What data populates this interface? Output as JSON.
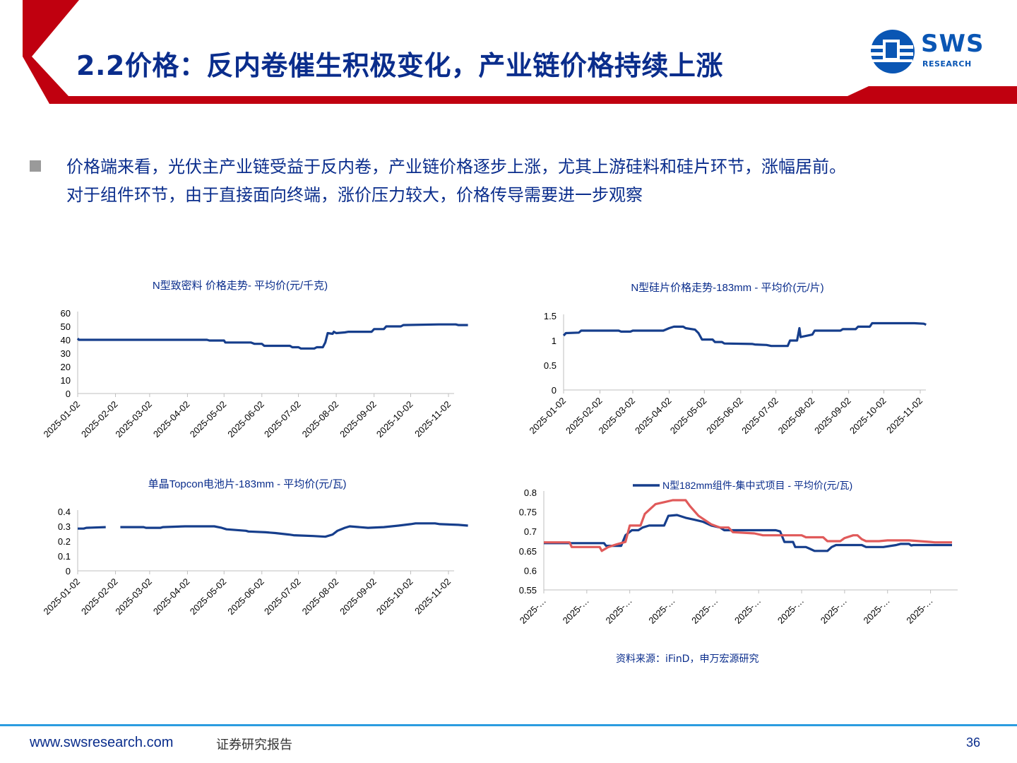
{
  "header": {
    "title": "2.2价格：反内卷催生积极变化，产业链价格持续上涨",
    "logo_text": "SWS",
    "logo_sub": "RESEARCH"
  },
  "body": {
    "bullet_lines": [
      "价格端来看，光伏主产业链受益于反内卷，产业链价格逐步上涨，尤其上游硅料和硅片环节，涨幅居前。",
      "对于组件环节，由于直接面向终端，涨价压力较大，价格传导需要进一步观察"
    ]
  },
  "chart_data": [
    {
      "type": "line",
      "title": "N型致密料 价格走势- 平均价(元/千克)",
      "ylim": [
        0,
        60
      ],
      "yticks": [
        "0",
        "10",
        "20",
        "30",
        "40",
        "50",
        "60"
      ],
      "ytick_values": [
        0,
        10,
        20,
        30,
        40,
        50,
        60
      ],
      "xticks": [
        "2025-01-02",
        "2025-02-02",
        "2025-03-02",
        "2025-04-02",
        "2025-05-02",
        "2025-06-02",
        "2025-07-02",
        "2025-08-02",
        "2025-09-02",
        "2025-10-02",
        "2025-11-02"
      ],
      "xlim": [
        "2025-01-02",
        "2025-11-02"
      ],
      "series": [
        {
          "color": "#163e8c",
          "points": [
            [
              "2025-01-02",
              41
            ],
            [
              "2025-01-03",
              40
            ],
            [
              "2025-04-18",
              40
            ],
            [
              "2025-04-20",
              39.5
            ],
            [
              "2025-05-02",
              39.5
            ],
            [
              "2025-05-03",
              38
            ],
            [
              "2025-05-24",
              38
            ],
            [
              "2025-05-27",
              37
            ],
            [
              "2025-06-02",
              37
            ],
            [
              "2025-06-04",
              35.5
            ],
            [
              "2025-06-25",
              35.5
            ],
            [
              "2025-06-27",
              34.5
            ],
            [
              "2025-07-02",
              34.5
            ],
            [
              "2025-07-04",
              33.5
            ],
            [
              "2025-07-15",
              33.5
            ],
            [
              "2025-07-17",
              34.5
            ],
            [
              "2025-07-22",
              34.5
            ],
            [
              "2025-07-24",
              38
            ],
            [
              "2025-07-26",
              45
            ],
            [
              "2025-07-30",
              44.5
            ],
            [
              "2025-07-31",
              46
            ],
            [
              "2025-08-02",
              45
            ],
            [
              "2025-08-09",
              45.5
            ],
            [
              "2025-08-12",
              46
            ],
            [
              "2025-08-31",
              46
            ],
            [
              "2025-09-02",
              48
            ],
            [
              "2025-09-10",
              48
            ],
            [
              "2025-09-12",
              50
            ],
            [
              "2025-09-24",
              50
            ],
            [
              "2025-09-26",
              51
            ],
            [
              "2025-10-25",
              51.5
            ],
            [
              "2025-11-08",
              51.5
            ],
            [
              "2025-11-10",
              51
            ],
            [
              "2025-11-18",
              51
            ]
          ]
        }
      ]
    },
    {
      "type": "line",
      "title": "N型硅片价格走势-183mm - 平均价(元/片)",
      "ylim": [
        0,
        1.5
      ],
      "yticks": [
        "0",
        "0.5",
        "1",
        "1.5"
      ],
      "ytick_values": [
        0,
        0.5,
        1,
        1.5
      ],
      "xticks": [
        "2025-01-02",
        "2025-02-02",
        "2025-03-02",
        "2025-04-02",
        "2025-05-02",
        "2025-06-02",
        "2025-07-02",
        "2025-08-02",
        "2025-09-02",
        "2025-10-02",
        "2025-11-02"
      ],
      "xlim": [
        "2025-01-02",
        "2025-11-02"
      ],
      "series": [
        {
          "color": "#163e8c",
          "points": [
            [
              "2025-01-02",
              1.1
            ],
            [
              "2025-01-04",
              1.15
            ],
            [
              "2025-01-15",
              1.16
            ],
            [
              "2025-01-17",
              1.2
            ],
            [
              "2025-02-18",
              1.2
            ],
            [
              "2025-02-20",
              1.18
            ],
            [
              "2025-02-28",
              1.18
            ],
            [
              "2025-03-02",
              1.2
            ],
            [
              "2025-03-28",
              1.2
            ],
            [
              "2025-04-02",
              1.25
            ],
            [
              "2025-04-06",
              1.28
            ],
            [
              "2025-04-14",
              1.28
            ],
            [
              "2025-04-16",
              1.25
            ],
            [
              "2025-04-24",
              1.22
            ],
            [
              "2025-04-27",
              1.15
            ],
            [
              "2025-04-30",
              1.02
            ],
            [
              "2025-05-09",
              1.02
            ],
            [
              "2025-05-11",
              0.97
            ],
            [
              "2025-05-17",
              0.97
            ],
            [
              "2025-05-19",
              0.94
            ],
            [
              "2025-06-12",
              0.93
            ],
            [
              "2025-06-14",
              0.92
            ],
            [
              "2025-06-24",
              0.91
            ],
            [
              "2025-06-28",
              0.89
            ],
            [
              "2025-07-12",
              0.89
            ],
            [
              "2025-07-14",
              1.0
            ],
            [
              "2025-07-20",
              1.0
            ],
            [
              "2025-07-22",
              1.25
            ],
            [
              "2025-07-23",
              1.07
            ],
            [
              "2025-08-02",
              1.12
            ],
            [
              "2025-08-04",
              1.2
            ],
            [
              "2025-08-26",
              1.2
            ],
            [
              "2025-08-28",
              1.23
            ],
            [
              "2025-09-08",
              1.23
            ],
            [
              "2025-09-10",
              1.28
            ],
            [
              "2025-09-20",
              1.28
            ],
            [
              "2025-09-22",
              1.35
            ],
            [
              "2025-10-28",
              1.35
            ],
            [
              "2025-11-05",
              1.34
            ],
            [
              "2025-11-07",
              1.32
            ]
          ]
        }
      ]
    },
    {
      "type": "line",
      "title": "单晶Topcon电池片-183mm - 平均价(元/瓦)",
      "ylim": [
        0,
        0.4
      ],
      "yticks": [
        "0",
        "0.1",
        "0.2",
        "0.3",
        "0.4"
      ],
      "ytick_values": [
        0,
        0.1,
        0.2,
        0.3,
        0.4
      ],
      "xticks": [
        "2025-01-02",
        "2025-02-02",
        "2025-03-02",
        "2025-04-02",
        "2025-05-02",
        "2025-06-02",
        "2025-07-02",
        "2025-08-02",
        "2025-09-02",
        "2025-10-02",
        "2025-11-02"
      ],
      "xlim": [
        "2025-01-02",
        "2025-11-02"
      ],
      "series": [
        {
          "color": "#163e8c",
          "segments": [
            [
              [
                "2025-01-02",
                0.285
              ],
              [
                "2025-01-07",
                0.285
              ],
              [
                "2025-01-09",
                0.29
              ],
              [
                "2025-01-25",
                0.295
              ]
            ],
            [
              [
                "2025-02-06",
                0.295
              ],
              [
                "2025-02-25",
                0.295
              ],
              [
                "2025-02-27",
                0.29
              ],
              [
                "2025-03-11",
                0.29
              ],
              [
                "2025-03-13",
                0.295
              ],
              [
                "2025-03-31",
                0.3
              ],
              [
                "2025-04-24",
                0.3
              ],
              [
                "2025-04-30",
                0.29
              ],
              [
                "2025-05-04",
                0.28
              ],
              [
                "2025-05-20",
                0.27
              ],
              [
                "2025-05-22",
                0.265
              ],
              [
                "2025-06-05",
                0.26
              ],
              [
                "2025-06-13",
                0.255
              ],
              [
                "2025-06-24",
                0.245
              ],
              [
                "2025-06-28",
                0.24
              ],
              [
                "2025-07-14",
                0.235
              ],
              [
                "2025-07-24",
                0.23
              ],
              [
                "2025-07-30",
                0.245
              ],
              [
                "2025-08-03",
                0.27
              ],
              [
                "2025-08-09",
                0.29
              ],
              [
                "2025-08-13",
                0.3
              ],
              [
                "2025-08-28",
                0.29
              ],
              [
                "2025-09-10",
                0.295
              ],
              [
                "2025-09-22",
                0.305
              ],
              [
                "2025-10-02",
                0.315
              ],
              [
                "2025-10-06",
                0.32
              ],
              [
                "2025-10-22",
                0.32
              ],
              [
                "2025-10-26",
                0.315
              ],
              [
                "2025-11-10",
                0.31
              ],
              [
                "2025-11-18",
                0.305
              ]
            ]
          ]
        }
      ]
    },
    {
      "type": "line",
      "title": "N型182mm组件-集中式项目 - 平均价(元/瓦)",
      "ylim": [
        0.55,
        0.8
      ],
      "yticks": [
        "0.55",
        "0.6",
        "0.65",
        "0.7",
        "0.75",
        "0.8"
      ],
      "ytick_values": [
        0.55,
        0.6,
        0.65,
        0.7,
        0.75,
        0.8
      ],
      "xticks": [
        "2025-…",
        "2025-…",
        "2025-…",
        "2025-…",
        "2025-…",
        "2025-…",
        "2025-…",
        "2025-…",
        "2025-…",
        "2025-…"
      ],
      "x_pos": [
        0,
        1,
        2,
        3,
        4,
        5,
        6,
        7,
        8,
        9
      ],
      "xlim": [
        0,
        9.5
      ],
      "legend": "top-center",
      "series": [
        {
          "name": "N型182mm组件-集中式项目 - 平均价(元/瓦)",
          "color": "#163e8c",
          "points": [
            [
              0,
              0.67
            ],
            [
              1.1,
              0.67
            ],
            [
              1.4,
              0.67
            ],
            [
              1.45,
              0.663
            ],
            [
              1.8,
              0.663
            ],
            [
              1.9,
              0.69
            ],
            [
              2.05,
              0.703
            ],
            [
              2.2,
              0.703
            ],
            [
              2.3,
              0.71
            ],
            [
              2.45,
              0.715
            ],
            [
              2.8,
              0.715
            ],
            [
              2.9,
              0.74
            ],
            [
              3.1,
              0.742
            ],
            [
              3.3,
              0.735
            ],
            [
              3.5,
              0.73
            ],
            [
              3.7,
              0.725
            ],
            [
              3.9,
              0.715
            ],
            [
              4.1,
              0.71
            ],
            [
              4.2,
              0.703
            ],
            [
              5.4,
              0.703
            ],
            [
              5.5,
              0.7
            ],
            [
              5.6,
              0.673
            ],
            [
              5.8,
              0.673
            ],
            [
              5.85,
              0.66
            ],
            [
              6.1,
              0.66
            ],
            [
              6.2,
              0.655
            ],
            [
              6.3,
              0.65
            ],
            [
              6.6,
              0.65
            ],
            [
              6.7,
              0.66
            ],
            [
              6.8,
              0.665
            ],
            [
              7.4,
              0.665
            ],
            [
              7.5,
              0.66
            ],
            [
              7.9,
              0.66
            ],
            [
              8.2,
              0.665
            ],
            [
              8.3,
              0.668
            ],
            [
              8.5,
              0.668
            ],
            [
              8.55,
              0.664
            ],
            [
              8.6,
              0.665
            ],
            [
              9.0,
              0.665
            ],
            [
              9.5,
              0.665
            ]
          ]
        },
        {
          "color": "#e05a5a",
          "points": [
            [
              0,
              0.672
            ],
            [
              0.6,
              0.672
            ],
            [
              0.65,
              0.66
            ],
            [
              1.3,
              0.66
            ],
            [
              1.35,
              0.65
            ],
            [
              1.5,
              0.66
            ],
            [
              1.7,
              0.667
            ],
            [
              1.9,
              0.673
            ],
            [
              2.0,
              0.715
            ],
            [
              2.25,
              0.715
            ],
            [
              2.35,
              0.745
            ],
            [
              2.5,
              0.76
            ],
            [
              2.6,
              0.77
            ],
            [
              2.8,
              0.775
            ],
            [
              3.0,
              0.78
            ],
            [
              3.3,
              0.78
            ],
            [
              3.4,
              0.765
            ],
            [
              3.6,
              0.74
            ],
            [
              3.9,
              0.718
            ],
            [
              4.1,
              0.71
            ],
            [
              4.3,
              0.71
            ],
            [
              4.4,
              0.698
            ],
            [
              4.9,
              0.695
            ],
            [
              5.1,
              0.69
            ],
            [
              5.5,
              0.69
            ],
            [
              5.9,
              0.69
            ],
            [
              6.0,
              0.69
            ],
            [
              6.1,
              0.685
            ],
            [
              6.5,
              0.685
            ],
            [
              6.6,
              0.675
            ],
            [
              6.9,
              0.675
            ],
            [
              7.0,
              0.683
            ],
            [
              7.2,
              0.69
            ],
            [
              7.3,
              0.69
            ],
            [
              7.4,
              0.68
            ],
            [
              7.5,
              0.675
            ],
            [
              7.8,
              0.675
            ],
            [
              8.0,
              0.677
            ],
            [
              8.5,
              0.677
            ],
            [
              9.0,
              0.673
            ],
            [
              9.1,
              0.672
            ],
            [
              9.3,
              0.672
            ],
            [
              9.5,
              0.672
            ]
          ]
        }
      ]
    }
  ],
  "source": "资料来源：iFinD，申万宏源研究",
  "footer": {
    "url": "www.swsresearch.com",
    "label": "证券研究报告",
    "page": "36"
  },
  "colors": {
    "accent_red": "#c0000f",
    "title_blue": "#0a2d8c",
    "line_blue": "#163e8c",
    "line_red": "#e05a5a"
  }
}
